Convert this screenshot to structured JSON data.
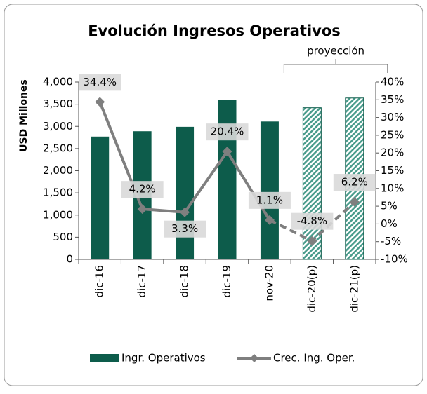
{
  "chart_data": {
    "type": "bar_line",
    "title": "Evolución Ingresos Operativos",
    "y_label": "USD Millones",
    "categories": [
      "dic-16",
      "dic-17",
      "dic-18",
      "dic-19",
      "nov-20",
      "dic-20(p)",
      "dic-21(p)"
    ],
    "series": [
      {
        "name": "Ingr. Operativos",
        "type": "bar",
        "color": "#0d5c4b",
        "values": [
          2770,
          2890,
          2990,
          3600,
          3110,
          3420,
          3640
        ]
      },
      {
        "name": "Crec. Ing. Oper.",
        "type": "line",
        "axis": "y2",
        "color": "#7f7f7f",
        "values": [
          34.4,
          4.2,
          3.3,
          20.4,
          1.1,
          -4.8,
          6.2
        ],
        "value_labels": [
          "34.4%",
          "4.2%",
          "3.3%",
          "20.4%",
          "1.1%",
          "-4.8%",
          "6.2%"
        ]
      }
    ],
    "projection": {
      "label": "proyección",
      "from": "dic-20(p)",
      "to": "dic-21(p)",
      "hatch_color": "#4a9c8c"
    },
    "ylim": [
      0,
      4000
    ],
    "yticks": [
      0,
      500,
      {
        "value": 1000,
        "label": "1,000"
      },
      {
        "value": 1500,
        "label": "1,500"
      },
      {
        "value": 2000,
        "label": "2,000"
      },
      {
        "value": 2500,
        "label": "2,500"
      },
      {
        "value": 3000,
        "label": "3,000"
      },
      {
        "value": 3500,
        "label": "3,500"
      },
      {
        "value": 4000,
        "label": "4,000"
      }
    ],
    "y2lim": [
      -10,
      40
    ],
    "y2ticks": [
      {
        "value": -10,
        "label": "-10%"
      },
      {
        "value": -5,
        "label": "-5%"
      },
      {
        "value": 0,
        "label": "0%"
      },
      {
        "value": 5,
        "label": "5%"
      },
      {
        "value": 10,
        "label": "10%"
      },
      {
        "value": 15,
        "label": "15%"
      },
      {
        "value": 20,
        "label": "20%"
      },
      {
        "value": 25,
        "label": "25%"
      },
      {
        "value": 30,
        "label": "30%"
      },
      {
        "value": 35,
        "label": "35%"
      },
      {
        "value": 40,
        "label": "40%"
      }
    ],
    "legend": "bottom"
  }
}
